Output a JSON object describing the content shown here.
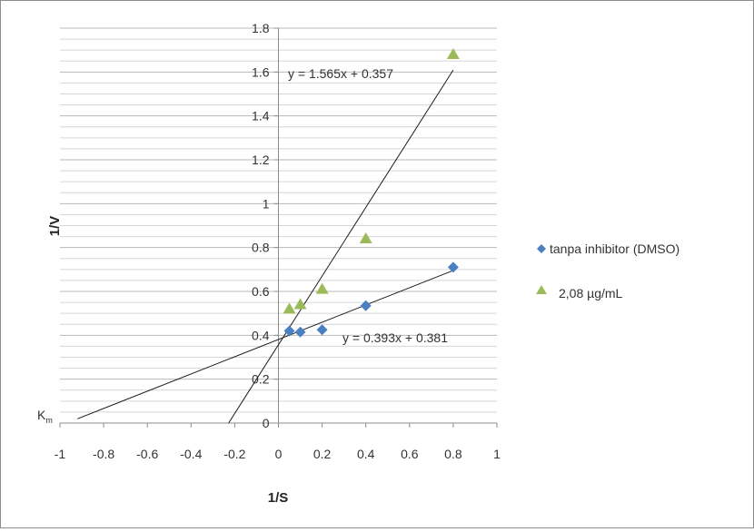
{
  "chart_data": {
    "type": "scatter",
    "xlabel": "1/S",
    "ylabel": "1/V",
    "xlim": [
      -1,
      1
    ],
    "ylim": [
      0,
      1.8
    ],
    "x_ticks": [
      "-1",
      "-0.8",
      "-0.6",
      "-0.4",
      "-0.2",
      "0",
      "0.2",
      "0.4",
      "0.6",
      "0.8",
      "1"
    ],
    "y_ticks": [
      "0",
      "0.2",
      "0.4",
      "0.6",
      "0.8",
      "1",
      "1.2",
      "1.4",
      "1.6",
      "1.8"
    ],
    "grid": "horizontal",
    "legend_position": "right",
    "series": [
      {
        "name": "tanpa inhibitor (DMSO)",
        "marker": "diamond",
        "color": "#4a7fc1",
        "points": [
          [
            0.05,
            0.42
          ],
          [
            0.1,
            0.415
          ],
          [
            0.2,
            0.425
          ],
          [
            0.4,
            0.535
          ],
          [
            0.8,
            0.71
          ]
        ],
        "trendline": {
          "slope": 0.393,
          "intercept": 0.381,
          "x_range": [
            -0.92,
            0.8
          ],
          "label": "y = 0.393x + 0.381"
        }
      },
      {
        "name": "2,08 µg/mL",
        "marker": "triangle",
        "color": "#9bbb59",
        "points": [
          [
            0.05,
            0.52
          ],
          [
            0.1,
            0.54
          ],
          [
            0.2,
            0.61
          ],
          [
            0.4,
            0.84
          ],
          [
            0.8,
            1.68
          ]
        ],
        "trendline": {
          "slope": 1.565,
          "intercept": 0.357,
          "x_range": [
            -0.228,
            0.8
          ],
          "label": "y = 1.565x + 0.357"
        }
      }
    ],
    "annotations": [
      {
        "text": "K",
        "subscript": "m"
      }
    ]
  }
}
